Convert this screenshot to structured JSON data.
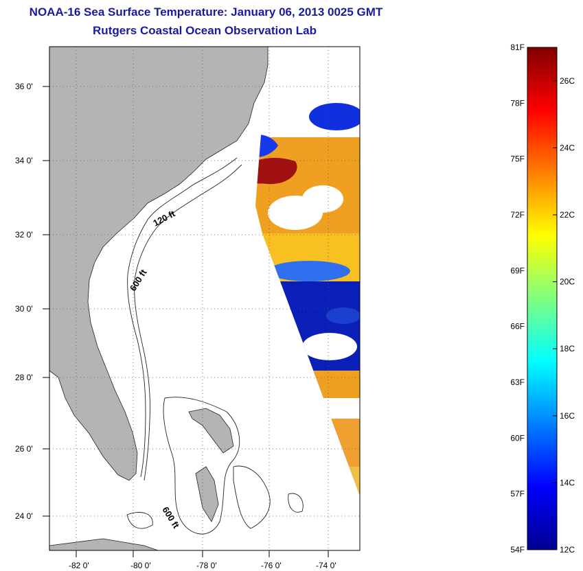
{
  "title": "NOAA-16 Sea Surface Temperature:  January 06, 2013 0025 GMT",
  "subtitle": "Rutgers Coastal Ocean Observation Lab",
  "map": {
    "lat_labels": [
      "36 0'",
      "34 0'",
      "32 0'",
      "30 0'",
      "28 0'",
      "26 0'",
      "24 0'"
    ],
    "lon_labels": [
      "-82 0'",
      "-80 0'",
      "-78 0'",
      "-76 0'",
      "-74 0'"
    ],
    "contour_labels": [
      "120 ft",
      "600 ft",
      "600 ft"
    ],
    "colors": {
      "land": "#b4b4b4",
      "frame": "#000000",
      "grid": "#555555"
    }
  },
  "colorbar": {
    "f_labels": [
      "81F",
      "78F",
      "75F",
      "72F",
      "69F",
      "66F",
      "63F",
      "60F",
      "57F",
      "54F"
    ],
    "c_labels": [
      "26C",
      "24C",
      "22C",
      "20C",
      "18C",
      "16C",
      "14C",
      "12C"
    ],
    "range_f": [
      54,
      81
    ],
    "range_c": [
      12,
      27
    ]
  }
}
